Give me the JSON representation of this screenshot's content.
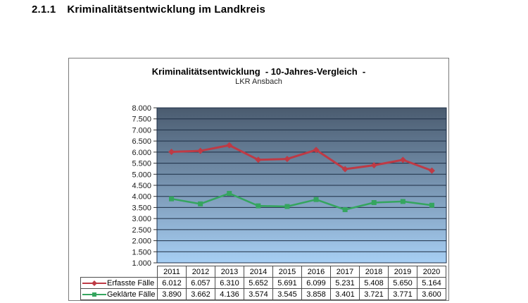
{
  "heading": {
    "number": "2.1.1",
    "title": "Kriminalitätsentwicklung im Landkreis"
  },
  "chart_data": {
    "type": "line",
    "title": "Kriminalitätsentwicklung  - 10-Jahres-Vergleich  -",
    "subtitle": "LKR Ansbach",
    "categories": [
      "2011",
      "2012",
      "2013",
      "2014",
      "2015",
      "2016",
      "2017",
      "2018",
      "2019",
      "2020"
    ],
    "series": [
      {
        "name": "Erfasste Fälle",
        "color": "#be3a45",
        "marker": "diamond",
        "values": [
          6012,
          6057,
          6310,
          5652,
          5691,
          6099,
          5231,
          5408,
          5650,
          5164
        ],
        "display_values": [
          "6.012",
          "6.057",
          "6.310",
          "5.652",
          "5.691",
          "6.099",
          "5.231",
          "5.408",
          "5.650",
          "5.164"
        ]
      },
      {
        "name": "Geklärte Fälle",
        "color": "#35a55f",
        "marker": "square",
        "values": [
          3890,
          3662,
          4136,
          3574,
          3545,
          3858,
          3401,
          3721,
          3771,
          3600
        ],
        "display_values": [
          "3.890",
          "3.662",
          "4.136",
          "3.574",
          "3.545",
          "3.858",
          "3.401",
          "3.721",
          "3.771",
          "3.600"
        ]
      }
    ],
    "ylim": [
      1000,
      8000
    ],
    "ytick_step": 500,
    "ytick_labels": [
      "8.000",
      "7.500",
      "7.000",
      "6.500",
      "6.000",
      "5.500",
      "5.000",
      "4.500",
      "4.000",
      "3.500",
      "3.000",
      "2.500",
      "2.000",
      "1.500",
      "1.000"
    ],
    "legend_position": "table-left",
    "grid": "horizontal",
    "plot_colors": {
      "gradient_top": "#4a5b6f",
      "gradient_bottom": "#a7cff4",
      "gridline": "#1d2e45",
      "axis_text": "#1a1a1a"
    }
  }
}
